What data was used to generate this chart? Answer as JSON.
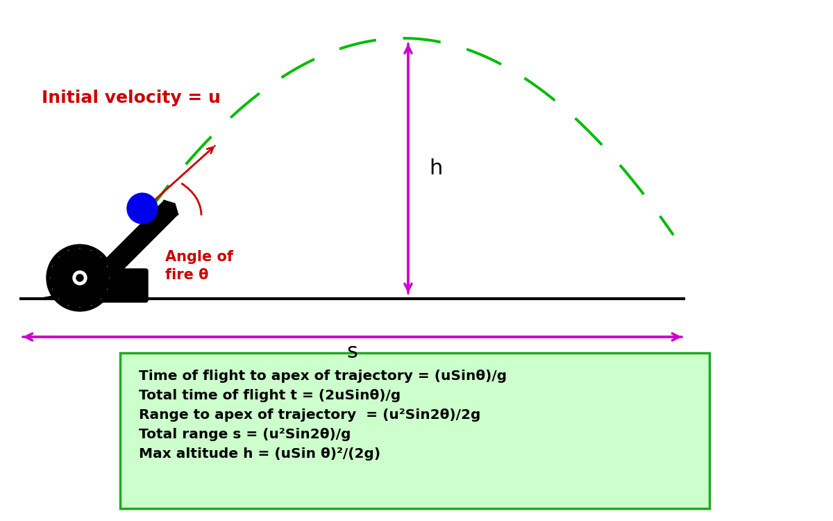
{
  "bg_color": "#ffffff",
  "trajectory_color": "#00bb00",
  "ground_color": "#000000",
  "arrow_color": "#cc00cc",
  "velocity_arrow_color": "#cc0000",
  "angle_arc_color": "#cc0000",
  "ball_color": "#0000ee",
  "box_bg_color": "#ccffcc",
  "box_edge_color": "#22aa22",
  "initial_velocity_label": "Initial velocity = u",
  "initial_velocity_color": "#cc0000",
  "angle_label": "Angle of\nfire θ",
  "angle_label_color": "#cc0000",
  "h_label": "h",
  "s_label": "s",
  "formulas": [
    "Time of flight to apex of trajectory = (uSinθ)/g",
    "Total time of flight t = (2uSinθ)/g",
    "Range to apex of trajectory  = (u²Sin2θ)/2g",
    "Total range s = (u²Sin2θ)/g",
    "Max altitude h = (uSin θ)²/(2g)"
  ]
}
